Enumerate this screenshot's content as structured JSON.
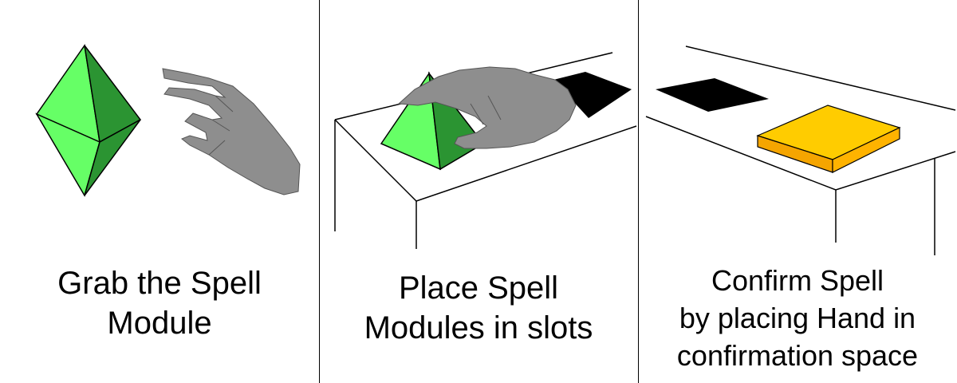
{
  "panels": [
    {
      "caption_lines": [
        "Grab the Spell",
        "Module"
      ],
      "icons": [
        "octahedron-spell-module-icon",
        "hand-icon"
      ]
    },
    {
      "caption_lines": [
        "Place Spell",
        "Modules in slots"
      ],
      "icons": [
        "table-icon",
        "pyramid-spell-module-icon",
        "hand-icon",
        "slot-icon"
      ]
    },
    {
      "caption_lines": [
        "Confirm Spell",
        "by placing Hand in",
        "confirmation space"
      ],
      "icons": [
        "table-icon",
        "slot-icon",
        "confirmation-space-icon"
      ]
    }
  ],
  "colors": {
    "module_light": "#66ff66",
    "module_dark": "#2b9432",
    "hand": "#8e8e8e",
    "slot": "#000000",
    "confirm_top": "#ffcc00",
    "confirm_side": "#f5a500",
    "outline": "#000000"
  }
}
